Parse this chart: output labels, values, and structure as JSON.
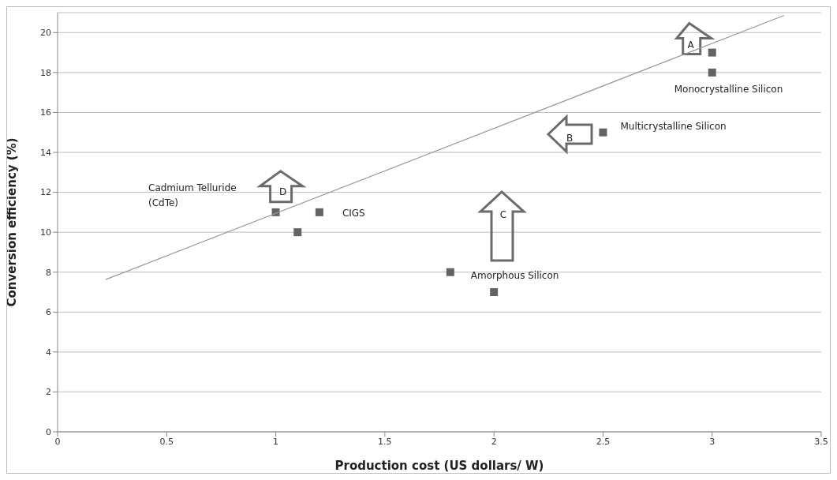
{
  "chart_data": {
    "type": "scatter",
    "xlabel": "Production cost (US dollars/ W)",
    "ylabel": "Conversion efficiency (%)",
    "xlim": [
      0,
      3.5
    ],
    "xticks": [
      0,
      0.5,
      1,
      1.5,
      2,
      2.5,
      3,
      3.5
    ],
    "ylim": [
      0,
      21
    ],
    "yticks": [
      0,
      2,
      4,
      6,
      8,
      10,
      12,
      14,
      16,
      18,
      20
    ],
    "grid": "y",
    "marker": "square",
    "legend": false,
    "series": [
      {
        "type": "scatter",
        "color": "#636363",
        "x": [
          3,
          3,
          2.5,
          1,
          1.2,
          1.1,
          1.8,
          2
        ],
        "values": [
          19,
          18,
          15,
          11,
          11,
          10,
          8,
          7
        ]
      },
      {
        "type": "line",
        "marker": "none",
        "color": "#999999",
        "x": [
          0.22,
          3.33
        ],
        "values": [
          7.63,
          20.86
        ]
      }
    ],
    "annotations": [
      {
        "text": "Monocrystalline Silicon",
        "x": 3,
        "y": 18
      },
      {
        "text": "Multicrystalline Silicon",
        "x": 2.5,
        "y": 15
      },
      {
        "text": "CIGS",
        "x": 1.2,
        "y": 11
      },
      {
        "text": "Amorphous Silicon",
        "x": 1.8,
        "y": 8
      },
      "Cadmium Telluride\n(CdTe)",
      {
        "text": "A",
        "x": 3,
        "y": 19
      },
      "B",
      "C",
      {
        "text": "D",
        "x": 1,
        "y": 11
      }
    ]
  }
}
